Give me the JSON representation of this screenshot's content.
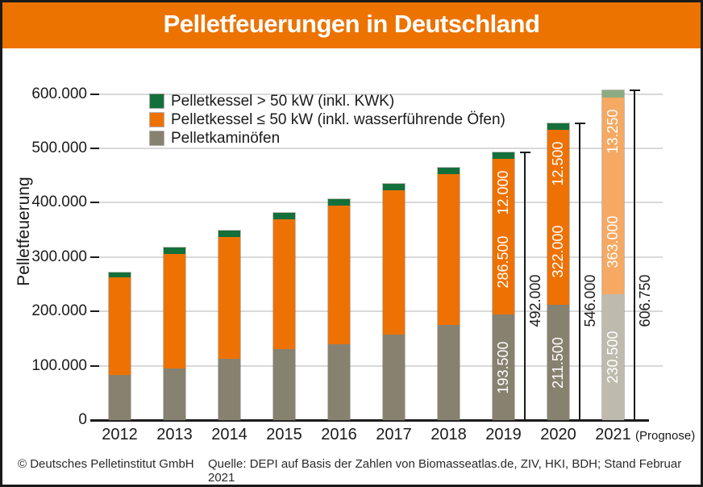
{
  "title": "Pelletfeuerungen in Deutschland",
  "colors": {
    "header_orange": "#EC7300",
    "bar_orange": "#EE7203",
    "bar_green": "#14703A",
    "bar_gray": "#87816F",
    "prognose_orange": "#F5A963",
    "prognose_green": "#8CAB80",
    "prognose_gray": "#BEBAAE",
    "gridline": "#D9D9D9",
    "text": "#1A1A1A"
  },
  "y_axis": {
    "label": "Pelletfeuerung",
    "ticks": [
      "600.000",
      "500.000",
      "400.000",
      "300.000",
      "200.000",
      "100.000",
      "0"
    ],
    "tick_values": [
      600000,
      500000,
      400000,
      300000,
      200000,
      100000,
      0
    ]
  },
  "legend": [
    {
      "label": "Pelletkessel > 50 kW (inkl. KWK)",
      "color": "#14703A"
    },
    {
      "label": "Pelletkessel ≤ 50 kW (inkl. wasserführende Öfen)",
      "color": "#EE7203"
    },
    {
      "label": "Pelletkaminöfen",
      "color": "#87816F"
    }
  ],
  "chart_data": {
    "type": "bar",
    "stacked": true,
    "title": "Pelletfeuerungen in Deutschland",
    "ylabel": "Pelletfeuerung",
    "ylim": [
      0,
      620000
    ],
    "grid": true,
    "legend_position": "top-left",
    "categories": [
      "2012",
      "2013",
      "2014",
      "2015",
      "2016",
      "2017",
      "2018",
      "2019",
      "2020",
      "2021"
    ],
    "prognose_suffix": "(Prognose)",
    "prognose_category": "2021",
    "series": [
      {
        "name": "Pelletkaminöfen",
        "color": "#87816F",
        "color_prognose": "#BEBAAE",
        "values": [
          83000,
          95000,
          112000,
          130000,
          140000,
          157000,
          175000,
          193500,
          211500,
          230500
        ]
      },
      {
        "name": "Pelletkessel ≤ 50 kW (inkl. wasserführende Öfen)",
        "color": "#EE7203",
        "color_prognose": "#F5A963",
        "values": [
          180000,
          211000,
          225000,
          240000,
          255000,
          266000,
          277000,
          286500,
          322000,
          363000
        ]
      },
      {
        "name": "Pelletkessel > 50 kW (inkl. KWK)",
        "color": "#14703A",
        "color_prognose": "#8CAB80",
        "values": [
          9000,
          11000,
          11000,
          12000,
          12000,
          12000,
          12000,
          12000,
          12500,
          13250
        ]
      }
    ],
    "annotations": [
      {
        "category": "2019",
        "segment_labels": [
          "193.500",
          "286.500",
          "12.000"
        ],
        "total_label": "492.000",
        "total_value": 492000
      },
      {
        "category": "2020",
        "segment_labels": [
          "211.500",
          "322.000",
          "12.500"
        ],
        "total_label": "546.000",
        "total_value": 546000
      },
      {
        "category": "2021",
        "segment_labels": [
          "230.500",
          "363.000",
          "13.250"
        ],
        "total_label": "606.750",
        "total_value": 606750
      }
    ]
  },
  "footer": {
    "copyright": "© Deutsches Pelletinstitut GmbH",
    "source": "Quelle: DEPI auf Basis der Zahlen von Biomasseatlas.de, ZIV, HKI, BDH; Stand Februar 2021"
  }
}
